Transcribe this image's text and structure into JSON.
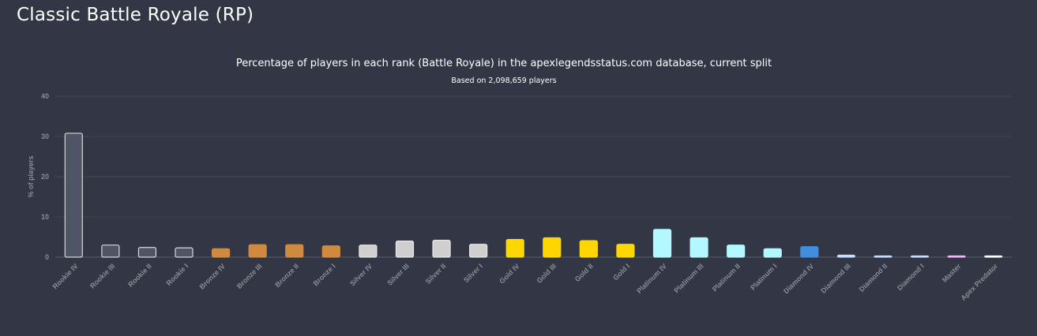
{
  "page": {
    "title": "Classic Battle Royale (RP)"
  },
  "chart_data": {
    "type": "bar",
    "title": "Percentage of players in each rank (Battle Royale) in the apexlegendsstatus.com database, current split",
    "subtitle": "Based on 2,098,659 players",
    "xlabel": "",
    "ylabel": "% of players",
    "ylim": [
      0,
      40
    ],
    "yticks": [
      0,
      10,
      20,
      30,
      40
    ],
    "grid": true,
    "legend": "none",
    "categories": [
      "Rookie IV",
      "Rookie III",
      "Rookie II",
      "Rookie I",
      "Bronze IV",
      "Bronze III",
      "Bronze II",
      "Bronze I",
      "Silver IV",
      "Silver III",
      "Silver II",
      "Silver I",
      "Gold IV",
      "Gold III",
      "Gold II",
      "Gold I",
      "Platinum IV",
      "Platinum III",
      "Platinum II",
      "Platinum I",
      "Diamond IV",
      "Diamond III",
      "Diamond II",
      "Diamond I",
      "Master",
      "Apex Predator"
    ],
    "values": [
      30.8,
      3.0,
      2.4,
      2.3,
      2.1,
      3.1,
      3.1,
      2.8,
      3.0,
      4.0,
      4.2,
      3.2,
      4.4,
      4.8,
      4.1,
      3.2,
      6.9,
      4.8,
      3.0,
      2.1,
      2.6,
      0.5,
      0.3,
      0.2,
      0.3,
      0.2
    ],
    "colors": [
      "#505566",
      "#505566",
      "#505566",
      "#505566",
      "#d08a3f",
      "#d08a3f",
      "#d08a3f",
      "#d08a3f",
      "#cfcfcf",
      "#cfcfcf",
      "#cfcfcf",
      "#cfcfcf",
      "#ffd700",
      "#ffd700",
      "#ffd700",
      "#ffd700",
      "#b3f7ff",
      "#b3f7ff",
      "#b3f7ff",
      "#b3f7ff",
      "#3f8ee0",
      "#c8dcff",
      "#c8dcff",
      "#c8dcff",
      "#f0b8f8",
      "#ffffff"
    ],
    "border_colors": [
      "#d8d8d8",
      "#d8d8d8",
      "#d8d8d8",
      "#d8d8d8",
      "#d08a3f",
      "#d08a3f",
      "#d08a3f",
      "#d08a3f",
      "#e8e8e8",
      "#e8e8e8",
      "#e8e8e8",
      "#e8e8e8",
      "#ffd700",
      "#ffd700",
      "#ffd700",
      "#ffd700",
      "#b3f7ff",
      "#b3f7ff",
      "#b3f7ff",
      "#b3f7ff",
      "#3f8ee0",
      "#c8dcff",
      "#c8dcff",
      "#c8dcff",
      "#f0b8f8",
      "#ffffff"
    ]
  }
}
